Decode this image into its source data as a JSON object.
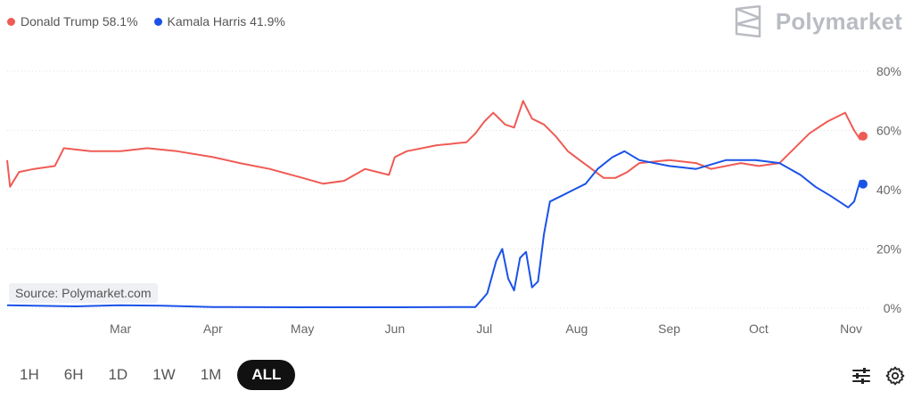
{
  "legend": [
    {
      "label": "Donald Trump 58.1%",
      "color": "#ef5b54"
    },
    {
      "label": "Kamala Harris 41.9%",
      "color": "#1a52e8"
    }
  ],
  "brand": {
    "name": "Polymarket"
  },
  "source_label": "Source: Polymarket.com",
  "ranges": {
    "items": [
      "1H",
      "6H",
      "1D",
      "1W",
      "1M",
      "ALL"
    ],
    "active": "ALL"
  },
  "icons": {
    "filter": "sliders-icon",
    "settings": "gear-icon"
  },
  "chart_data": {
    "type": "line",
    "x_axis": {
      "ticks": [
        "Mar",
        "Apr",
        "May",
        "Jun",
        "Jul",
        "Aug",
        "Sep",
        "Oct",
        "Nov"
      ],
      "range": [
        "2024-01-23",
        "2024-11-05"
      ]
    },
    "y_axis": {
      "ticks": [
        "0%",
        "20%",
        "40%",
        "60%",
        "80%"
      ],
      "range": [
        0,
        80
      ],
      "position": "right"
    },
    "grid": true,
    "legend_position": "top-left",
    "series": [
      {
        "name": "Donald Trump",
        "color": "#ef5b54",
        "points": [
          [
            "2024-01-23",
            50
          ],
          [
            "2024-01-24",
            41
          ],
          [
            "2024-01-27",
            46
          ],
          [
            "2024-02-01",
            47
          ],
          [
            "2024-02-08",
            48
          ],
          [
            "2024-02-11",
            54
          ],
          [
            "2024-02-20",
            53
          ],
          [
            "2024-03-01",
            53
          ],
          [
            "2024-03-10",
            54
          ],
          [
            "2024-03-20",
            53
          ],
          [
            "2024-04-01",
            51
          ],
          [
            "2024-04-10",
            49
          ],
          [
            "2024-04-20",
            47
          ],
          [
            "2024-05-01",
            44
          ],
          [
            "2024-05-08",
            42
          ],
          [
            "2024-05-15",
            43
          ],
          [
            "2024-05-22",
            47
          ],
          [
            "2024-05-30",
            45
          ],
          [
            "2024-06-01",
            51
          ],
          [
            "2024-06-05",
            53
          ],
          [
            "2024-06-15",
            55
          ],
          [
            "2024-06-25",
            56
          ],
          [
            "2024-06-28",
            59
          ],
          [
            "2024-07-01",
            63
          ],
          [
            "2024-07-04",
            66
          ],
          [
            "2024-07-08",
            62
          ],
          [
            "2024-07-11",
            61
          ],
          [
            "2024-07-14",
            70
          ],
          [
            "2024-07-17",
            64
          ],
          [
            "2024-07-21",
            62
          ],
          [
            "2024-07-25",
            58
          ],
          [
            "2024-07-29",
            53
          ],
          [
            "2024-08-02",
            50
          ],
          [
            "2024-08-06",
            47
          ],
          [
            "2024-08-10",
            44
          ],
          [
            "2024-08-14",
            44
          ],
          [
            "2024-08-18",
            46
          ],
          [
            "2024-08-22",
            49
          ],
          [
            "2024-09-01",
            50
          ],
          [
            "2024-09-10",
            49
          ],
          [
            "2024-09-15",
            47
          ],
          [
            "2024-09-25",
            49
          ],
          [
            "2024-10-01",
            48
          ],
          [
            "2024-10-08",
            49
          ],
          [
            "2024-10-13",
            54
          ],
          [
            "2024-10-18",
            59
          ],
          [
            "2024-10-24",
            63
          ],
          [
            "2024-10-30",
            66
          ],
          [
            "2024-11-02",
            60
          ],
          [
            "2024-11-04",
            57
          ],
          [
            "2024-11-05",
            58.1
          ]
        ]
      },
      {
        "name": "Kamala Harris",
        "color": "#1a52e8",
        "points": [
          [
            "2024-01-23",
            1
          ],
          [
            "2024-02-15",
            0.6
          ],
          [
            "2024-03-01",
            1
          ],
          [
            "2024-03-15",
            0.8
          ],
          [
            "2024-04-01",
            0.4
          ],
          [
            "2024-05-01",
            0.3
          ],
          [
            "2024-06-01",
            0.3
          ],
          [
            "2024-06-28",
            0.4
          ],
          [
            "2024-07-02",
            5
          ],
          [
            "2024-07-05",
            16
          ],
          [
            "2024-07-07",
            20
          ],
          [
            "2024-07-09",
            10
          ],
          [
            "2024-07-11",
            6
          ],
          [
            "2024-07-13",
            17
          ],
          [
            "2024-07-15",
            19
          ],
          [
            "2024-07-17",
            7
          ],
          [
            "2024-07-19",
            9
          ],
          [
            "2024-07-21",
            25
          ],
          [
            "2024-07-23",
            36
          ],
          [
            "2024-07-27",
            38
          ],
          [
            "2024-07-31",
            40
          ],
          [
            "2024-08-04",
            42
          ],
          [
            "2024-08-08",
            47
          ],
          [
            "2024-08-13",
            51
          ],
          [
            "2024-08-17",
            53
          ],
          [
            "2024-08-22",
            50
          ],
          [
            "2024-09-01",
            48
          ],
          [
            "2024-09-10",
            47
          ],
          [
            "2024-09-20",
            50
          ],
          [
            "2024-09-30",
            50
          ],
          [
            "2024-10-08",
            49
          ],
          [
            "2024-10-15",
            45
          ],
          [
            "2024-10-20",
            41
          ],
          [
            "2024-10-25",
            38
          ],
          [
            "2024-10-31",
            34
          ],
          [
            "2024-11-02",
            36
          ],
          [
            "2024-11-04",
            43
          ],
          [
            "2024-11-05",
            41.9
          ]
        ]
      }
    ]
  }
}
